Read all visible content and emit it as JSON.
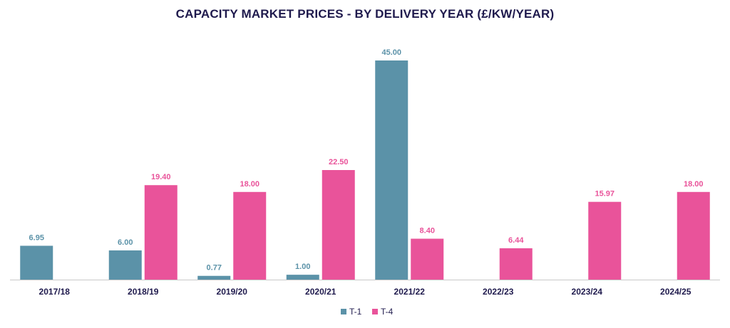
{
  "chart_data": {
    "type": "bar",
    "title": "CAPACITY MARKET PRICES - BY DELIVERY YEAR (£/KW/YEAR)",
    "xlabel": "",
    "ylabel": "",
    "categories": [
      "2017/18",
      "2018/19",
      "2019/20",
      "2020/21",
      "2021/22",
      "2022/23",
      "2023/24",
      "2024/25"
    ],
    "series": [
      {
        "name": "T-1",
        "color": "#5b92a8",
        "values": [
          6.95,
          6.0,
          0.77,
          1.0,
          45.0,
          null,
          null,
          null
        ],
        "labels": [
          "6.95",
          "6.00",
          "0.77",
          "1.00",
          "45.00",
          "",
          "",
          ""
        ]
      },
      {
        "name": "T-4",
        "color": "#e9539a",
        "values": [
          null,
          19.4,
          18.0,
          22.5,
          8.4,
          6.44,
          15.97,
          18.0
        ],
        "labels": [
          "",
          "19.40",
          "18.00",
          "22.50",
          "8.40",
          "6.44",
          "15.97",
          "18.00"
        ]
      }
    ],
    "ylim": [
      0,
      45
    ],
    "grid": false,
    "legend_position": "bottom-center"
  }
}
